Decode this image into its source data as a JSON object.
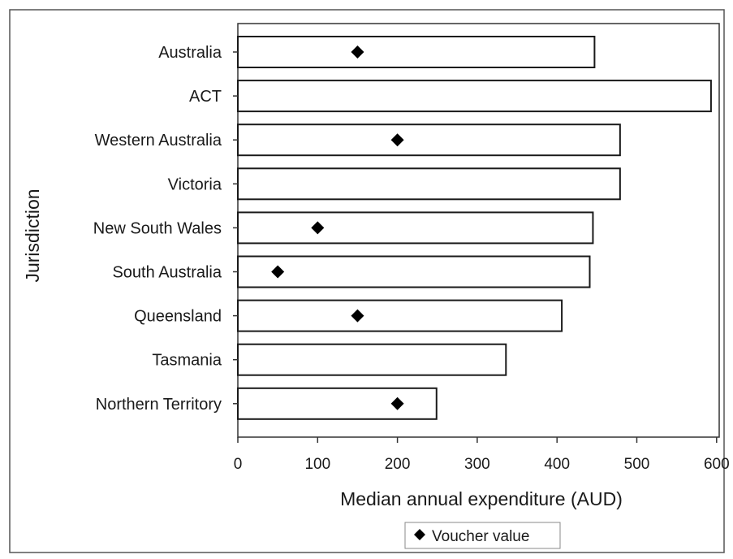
{
  "chart_data": {
    "type": "bar",
    "orientation": "horizontal",
    "categories": [
      "Australia",
      "ACT",
      "Western Australia",
      "Victoria",
      "New South Wales",
      "South Australia",
      "Queensland",
      "Tasmania",
      "Northern Territory"
    ],
    "values": [
      447,
      593,
      479,
      479,
      445,
      441,
      406,
      336,
      249
    ],
    "markers": {
      "name": "Voucher value",
      "values": [
        150,
        null,
        200,
        null,
        100,
        50,
        150,
        null,
        200
      ],
      "color": "#000000",
      "shape": "diamond"
    },
    "xlabel": "Median annual expenditure (AUD)",
    "ylabel": "Jurisdiction",
    "xlim": [
      0,
      600
    ],
    "xticks": [
      0,
      100,
      200,
      300,
      400,
      500,
      600
    ],
    "grid": false,
    "legend_position": "bottom",
    "bar_fill": "#ffffff",
    "bar_stroke": "#1a1a1a"
  }
}
